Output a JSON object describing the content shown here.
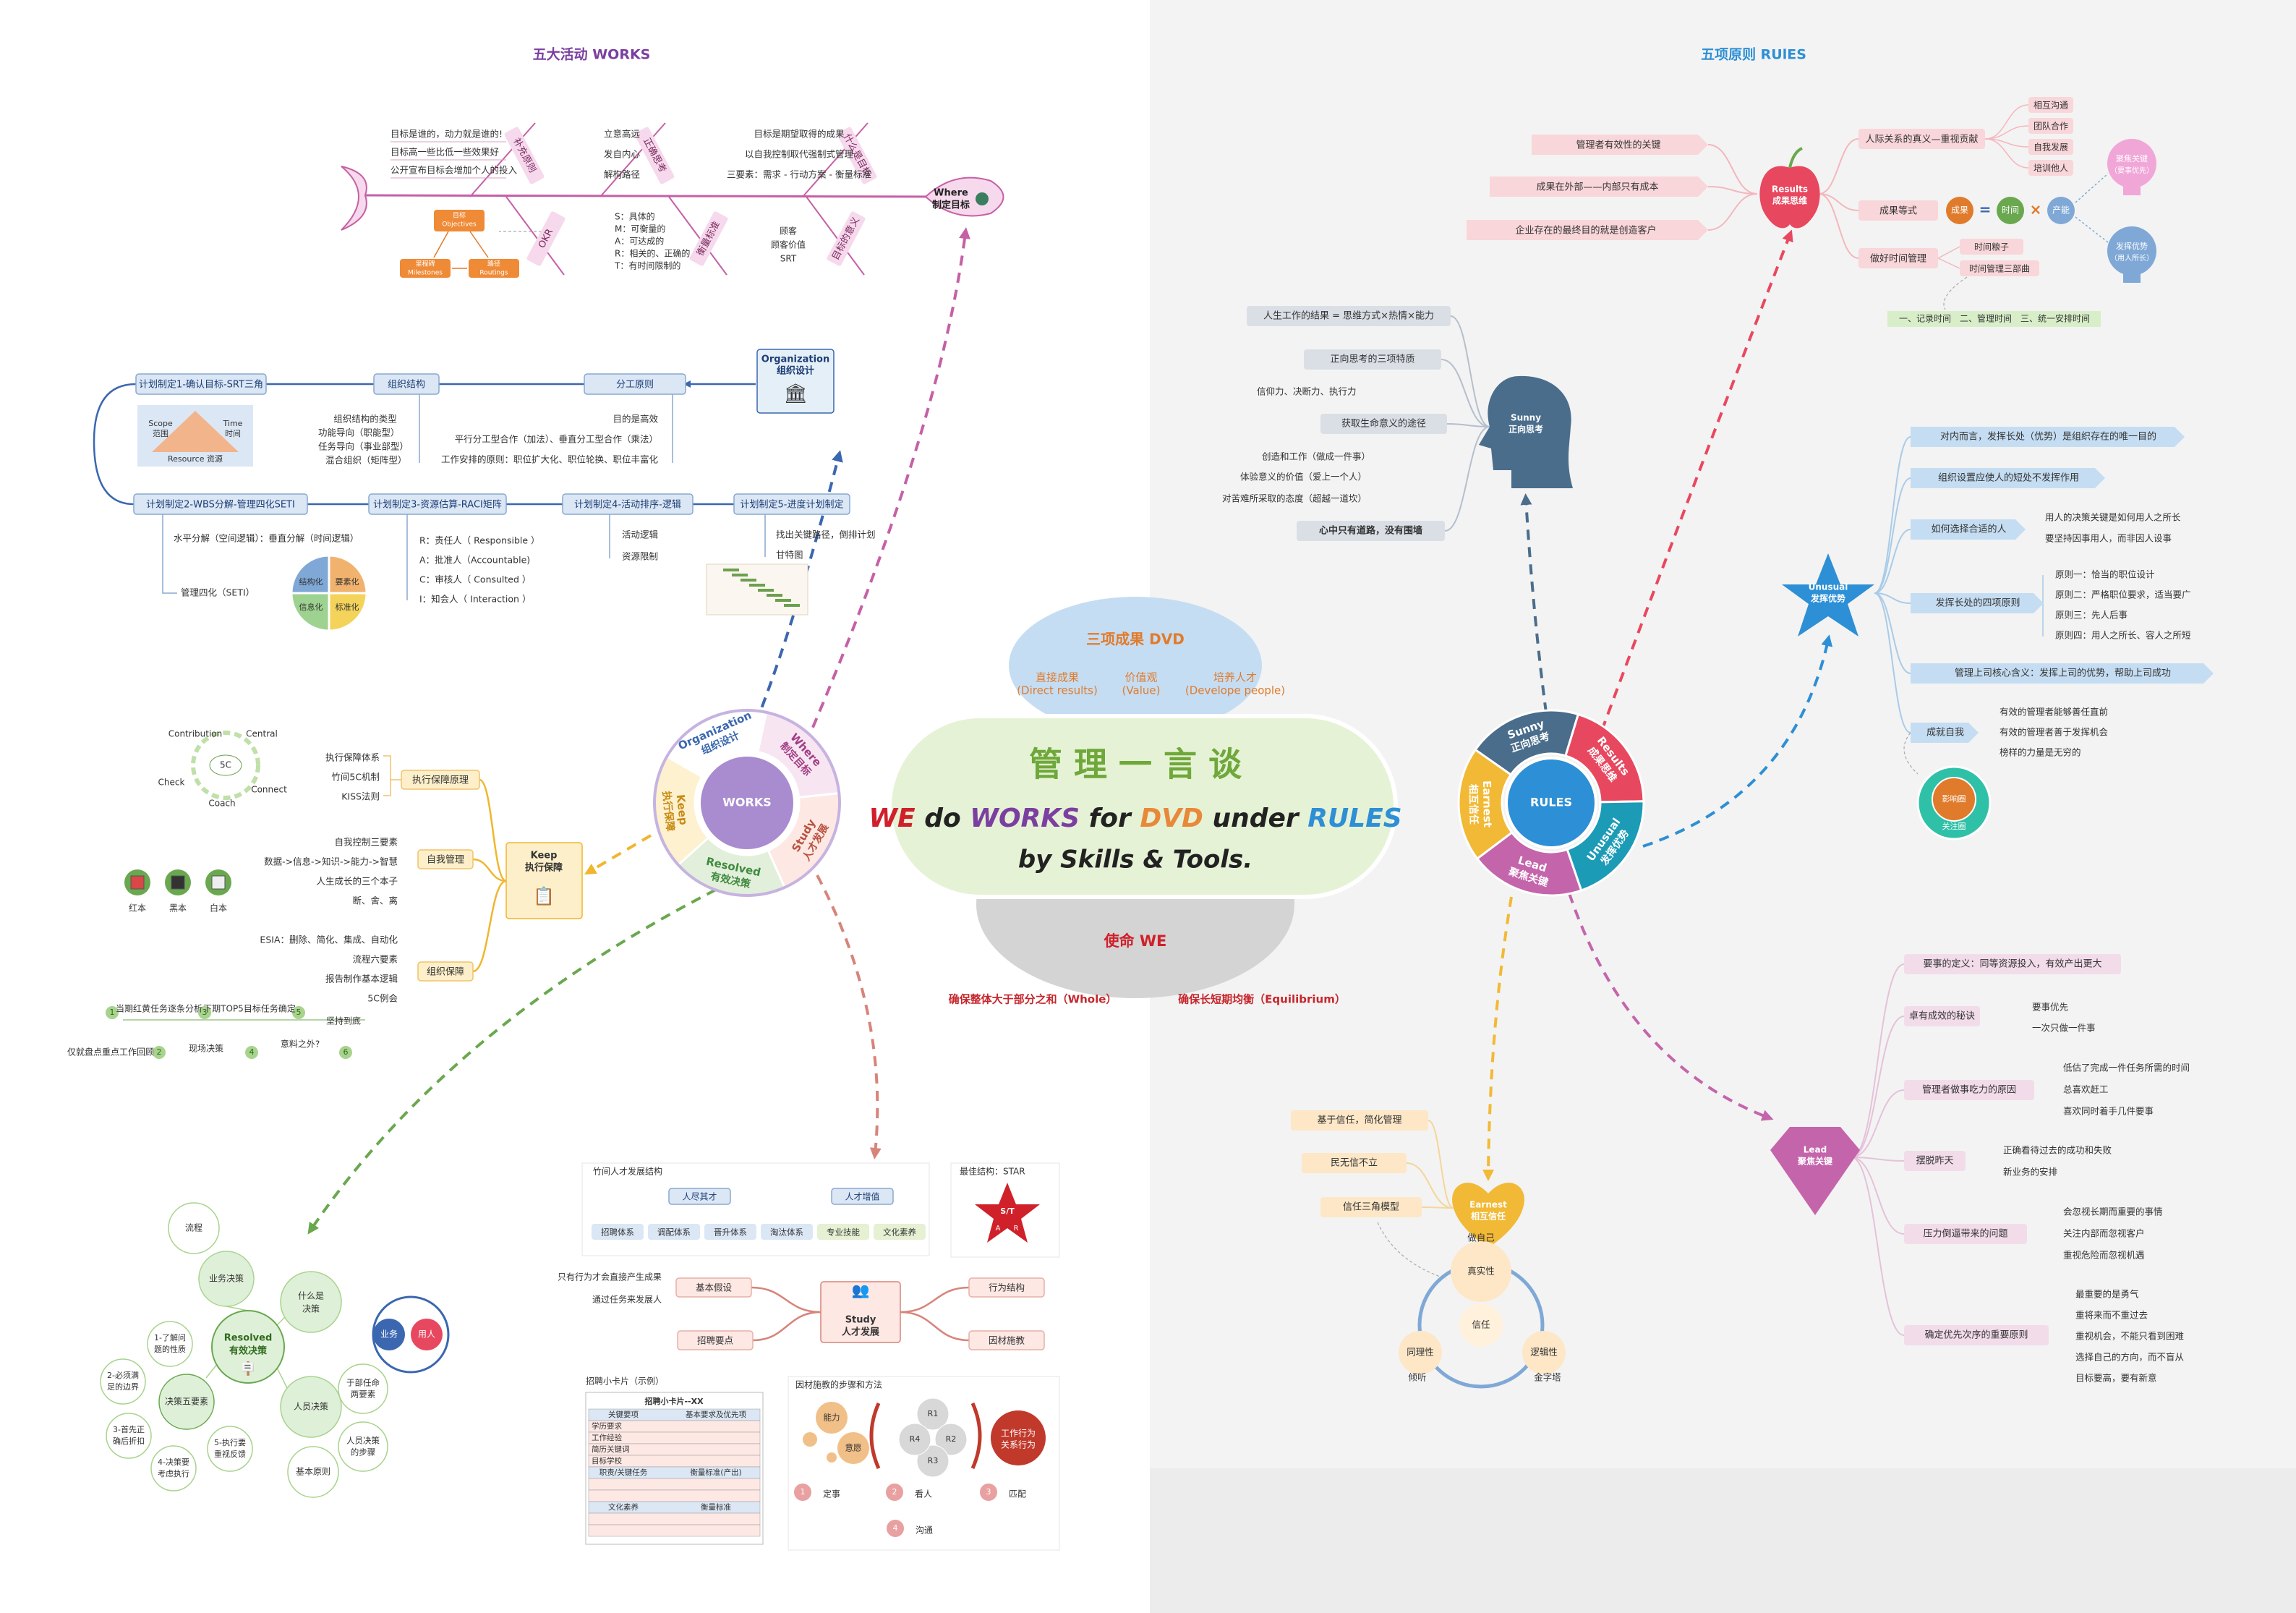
{
  "center": {
    "title": "管 理 一 言 谈",
    "line1": [
      {
        "t": "WE",
        "c": "#d0202a"
      },
      {
        "t": " do ",
        "c": "#222"
      },
      {
        "t": "WORKS",
        "c": "#7b3fa0"
      },
      {
        "t": " for ",
        "c": "#222"
      },
      {
        "t": "DVD",
        "c": "#e8893a"
      },
      {
        "t": " under ",
        "c": "#222"
      },
      {
        "t": "RULES",
        "c": "#2d8fd5"
      }
    ],
    "line2": "by Skills & Tools.",
    "dvd_title": "三项成果 DVD",
    "dvd_items": [
      "直接成果",
      "价值观",
      "培养人才"
    ],
    "dvd_sub": [
      "(Direct results)",
      "(Value)",
      "(Develope people)"
    ],
    "mission": "使命 WE",
    "whole": "确保整体大于部分之和（Whole）",
    "equil": "确保长短期均衡（Equilibrium）"
  },
  "works": {
    "title": "五大活动 WORKS",
    "hub": "WORKS",
    "segments": [
      [
        "Organization",
        "组织设计"
      ],
      [
        "Where",
        "制定目标"
      ],
      [
        "Study",
        "人才发展"
      ],
      [
        "Resolved",
        "有效决策"
      ],
      [
        "Keep",
        "执行保障"
      ]
    ]
  },
  "rules": {
    "title": "五项原则 RUlES",
    "hub": "RULES",
    "segments": [
      [
        "Sunny",
        "正向思考"
      ],
      [
        "Results",
        "成果思维"
      ],
      [
        "Unusual",
        "发挥优势"
      ],
      [
        "Lead",
        "聚焦关键"
      ],
      [
        "Earnest",
        "相互信任"
      ]
    ]
  },
  "fish": {
    "head": [
      "Where",
      "制定目标"
    ],
    "b1": "补充原则",
    "b2": "正确思考",
    "b3": "什么是目标",
    "b4": "OKR",
    "b5": "衡量标准",
    "b6": "目标的意义",
    "b1_items": [
      "目标是谁的，动力就是谁的!",
      "目标高一些比低一些效果好",
      "公开宣布目标会增加个人的投入"
    ],
    "b2_items": [
      "立意高远",
      "发自内心",
      "解构路径"
    ],
    "b3_items": [
      "目标是期望取得的成果",
      "以自我控制取代强制式管理",
      "三要素：需求 - 行动方案 - 衡量标准"
    ],
    "smart": [
      "S：具体的",
      "M：可衡量的",
      "A：可达成的",
      "R：相关的、正确的",
      "T：有时间限制的"
    ],
    "b6_items": [
      "顾客",
      "顾客价值",
      "SRT"
    ],
    "okr": [
      "目标",
      "Objectives",
      "里程碑",
      "Milestones",
      "路径",
      "Routings"
    ]
  },
  "org": {
    "hub": [
      "Organization",
      "组织设计"
    ],
    "plans": [
      "计划制定1-确认目标-SRT三角",
      "组织结构",
      "分工原则",
      "计划制定2-WBS分解-管理四化SETI",
      "计划制定3-资源估算-RACI矩阵",
      "计划制定4-活动排序-逻辑",
      "计划制定5-进度计划制定"
    ],
    "tri": [
      "Scope",
      "范围",
      "Time",
      "时间",
      "Resource 资源"
    ],
    "org_items": [
      "组织结构的类型",
      "功能导向（职能型）",
      "任务导向（事业部型）",
      "混合组织（矩阵型）"
    ],
    "fen_items": [
      "目的是高效",
      "平行分工型合作（加法）、垂直分工型合作（乘法）",
      "工作安排的原则：职位扩大化、职位轮换、职位丰富化"
    ],
    "wbs": [
      "水平分解（空间逻辑）：垂直分解（时间逻辑）",
      "管理四化（SETI）"
    ],
    "seti": [
      "结构化",
      "要素化",
      "信息化",
      "标准化"
    ],
    "raci": [
      "R：责任人（ Responsible ）",
      "A：批准人（Accountable)",
      "C：审核人（ Consulted ）",
      "I：知会人（ Interaction ）"
    ],
    "logic": [
      "活动逻辑",
      "资源限制"
    ],
    "sched": [
      "找出关键路径，倒排计划",
      "甘特图"
    ]
  },
  "keep": {
    "hub": [
      "Keep",
      "执行保障"
    ],
    "b1": "执行保障原理",
    "b2": "自我管理",
    "b3": "组织保障",
    "b1_items": [
      "执行保障体系",
      "竹间5C机制",
      "KISS法则"
    ],
    "c5": [
      "5C",
      "Contribution",
      "Central",
      "Check",
      "Coach",
      "Connect"
    ],
    "b2_items": [
      "自我控制三要素",
      "数据->信息->知识->能力->智慧",
      "人生成长的三个本子",
      "断、舍、离"
    ],
    "books": [
      "红本",
      "黑本",
      "白本"
    ],
    "b3_items": [
      "ESIA：删除、简化、集成、自动化",
      "流程六要素",
      "报告制作基本逻辑",
      "5C例会"
    ],
    "steps": [
      "1",
      "2",
      "3",
      "4",
      "5",
      "6"
    ],
    "step_top": [
      "当期红黄任务逐条分析",
      "下期TOP5目标任务确定",
      "坚持到底"
    ],
    "step_bot": [
      "仅就盘点重点工作回顾",
      "现场决策",
      "意料之外?"
    ]
  },
  "resolved": {
    "hub": [
      "Resolved",
      "有效决策"
    ],
    "outer": [
      "流程",
      "业务决策",
      "什么是决策",
      "人员决策",
      "基本原则",
      "于部任命两要素",
      "人员决策的步骤"
    ],
    "seven": [
      "决策五要素",
      "1-了解问题的性质",
      "2-必须满足的边界",
      "3-首先正确后折扣",
      "4-决策要考虑执行",
      "5-执行要重视反馈"
    ],
    "bubble": [
      "业务",
      "用人"
    ]
  },
  "study": {
    "hub": [
      "Study",
      "人才发展"
    ],
    "b1": "基本假设",
    "b2": "招聘要点",
    "b3": "行为结构",
    "b4": "因材施教",
    "b1_items": [
      "只有行为才会直接产生成果",
      "通过任务来发展人"
    ],
    "talent_title": "竹间人才发展结构",
    "talent_top": [
      "人尽其才",
      "人才增值"
    ],
    "talent_boxes": [
      "招聘体系",
      "调配体系",
      "晋升体系",
      "淘汰体系",
      "专业技能",
      "文化素养"
    ],
    "star_title": "最佳结构：STAR",
    "star": [
      "S/T",
      "A",
      "R"
    ],
    "card_title": "招聘小卡片（示例）",
    "card_head": "招聘小卡片--XX",
    "card_rows": [
      "关键要项",
      "基本要求及优先项",
      "学历要求",
      "工作经验",
      "简历关键词",
      "目标学校",
      "职责/关键任务",
      "衡量标准(产出)",
      "文化素养",
      "衡量标准"
    ],
    "teach_title": "因材施教的步骤和方法",
    "teach_circles": [
      "能力",
      "意愿",
      "R1",
      "R2",
      "R3",
      "R4",
      "工作行为",
      "关系行为"
    ],
    "teach_steps": [
      "1",
      "定事",
      "2",
      "看人",
      "3",
      "匹配",
      "4",
      "沟通"
    ]
  },
  "results": {
    "hub": [
      "Results",
      "成果思维"
    ],
    "left": [
      "管理者有效性的关键",
      "成果在外部——内部只有成本",
      "企业存在的最终目的就是创造客户"
    ],
    "right": [
      "人际关系的真义—重视贡献",
      "成果等式",
      "做好时间管理"
    ],
    "rel": [
      "相互沟通",
      "团队合作",
      "自我发展",
      "培训他人"
    ],
    "eq": [
      "成果",
      "时间",
      "产能"
    ],
    "bulbs": [
      "聚焦关键",
      "（要事优先）",
      "发挥优势",
      "（用人所长）"
    ],
    "time": [
      "时间粮子",
      "时间管理三部曲"
    ],
    "time3": "一、记录时间　二、管理时间　三、统一安排时间"
  },
  "sunny": {
    "hub": [
      "Sunny",
      "正向思考"
    ],
    "items": [
      "人生工作的结果 = 思维方式×热情×能力",
      "正向思考的三项特质",
      "信仰力、决断力、执行力",
      "获取生命意义的途径",
      "创造和工作（做成一件事）",
      "体验意义的价值（爱上一个人）",
      "对苦难所采取的态度（超越一道坎）",
      "心中只有道路，没有围墙"
    ]
  },
  "unusual": {
    "hub": [
      "Unusual",
      "发挥优势"
    ],
    "items": [
      "对内而言，发挥长处（优势）是组织存在的唯一目的",
      "组织设置应使人的短处不发挥作用",
      "如何选择合适的人",
      "发挥长处的四项原则",
      "管理上司核心含义：发挥上司的优势，帮助上司成功",
      "成就自我"
    ],
    "pick": [
      "用人的决策关键是如何用人之所长",
      "要坚持因事用人，而非因人设事"
    ],
    "four": [
      "原则一：恰当的职位设计",
      "原则二：严格职位要求，适当要广",
      "原则三：先人后事",
      "原则四：用人之所长、容人之所短"
    ],
    "self": [
      "有效的管理者能够善任直前",
      "有效的管理者善于发挥机会",
      "榜样的力量是无穷的"
    ],
    "circle": [
      "影响圈",
      "关注圈"
    ]
  },
  "lead": {
    "hub": [
      "Lead",
      "聚焦关键"
    ],
    "items": [
      "要事的定义：同等资源投入，有效产出更大",
      "卓有成效的秘诀",
      "管理者做事吃力的原因",
      "摆脱昨天",
      "压力倒逼带来的问题",
      "确定优先次序的重要原则"
    ],
    "secret": [
      "要事优先",
      "一次只做一件事"
    ],
    "reason": [
      "低估了完成一件任务所需的时间",
      "总喜欢赶工",
      "喜欢同时着手几件要事"
    ],
    "yest": [
      "正确看待过去的成功和失败",
      "新业务的安排"
    ],
    "press": [
      "会忽视长期而重要的事情",
      "关注内部而忽视客户",
      "重视危险而忽视机遇"
    ],
    "prio": [
      "最重要的是勇气",
      "重将来而不重过去",
      "重视机会，不能只看到困难",
      "选择自己的方向，而不盲从",
      "目标要高，要有新意"
    ]
  },
  "earnest": {
    "hub": [
      "Earnest",
      "相互信任"
    ],
    "items": [
      "基于信任，简化管理",
      "民无信不立",
      "信任三角模型"
    ],
    "tri": [
      "做自己",
      "真实性",
      "信任",
      "同理性",
      "逻辑性",
      "倾听",
      "金字塔"
    ]
  }
}
